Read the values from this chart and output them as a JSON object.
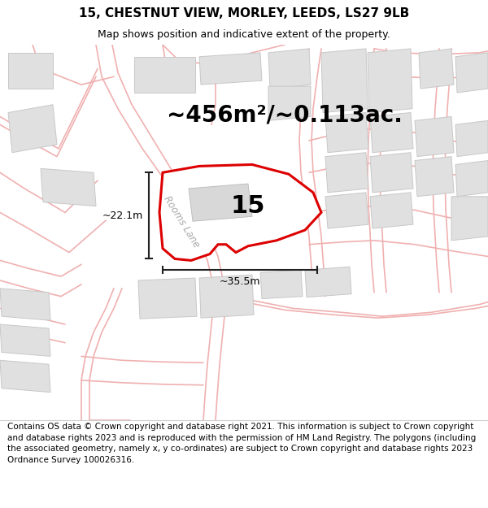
{
  "title": "15, CHESTNUT VIEW, MORLEY, LEEDS, LS27 9LB",
  "subtitle": "Map shows position and indicative extent of the property.",
  "footer": "Contains OS data © Crown copyright and database right 2021. This information is subject to Crown copyright and database rights 2023 and is reproduced with the permission of HM Land Registry. The polygons (including the associated geometry, namely x, y co-ordinates) are subject to Crown copyright and database rights 2023 Ordnance Survey 100026316.",
  "area_label": "~456m²/~0.113ac.",
  "property_number": "15",
  "width_label": "~35.5m",
  "height_label": "~22.1m",
  "street_label": "Rooms Lane",
  "bg_color": "#f8f8f8",
  "map_bg": "#f8f8f8",
  "plot_edge_color": "#dd0000",
  "building_color": "#e0e0e0",
  "building_edge_color": "#c8c8c8",
  "road_color": "#f0b0b0",
  "dim_color": "#222222",
  "title_fontsize": 11,
  "subtitle_fontsize": 9,
  "footer_fontsize": 7.5,
  "area_fontsize": 20,
  "number_fontsize": 22
}
